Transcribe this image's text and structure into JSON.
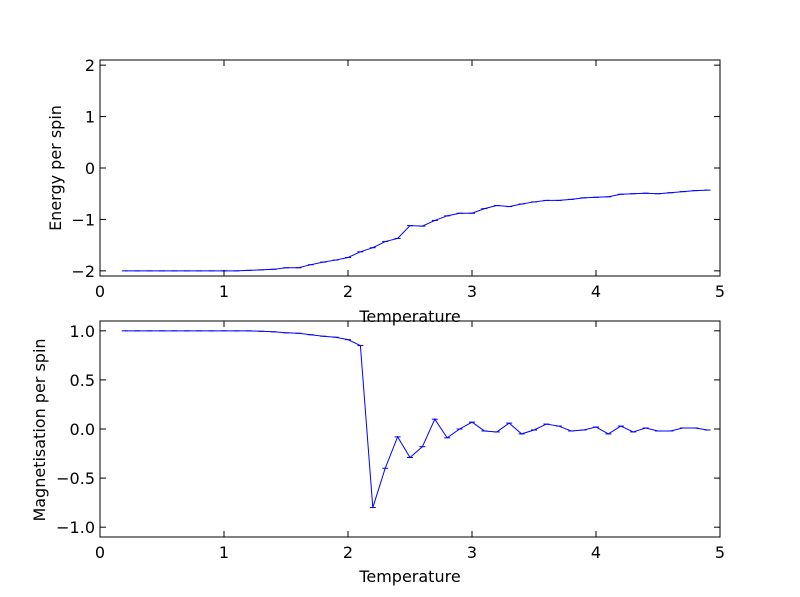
{
  "line_color": "#0000ff",
  "chart_data": [
    {
      "type": "line",
      "xlabel": "Temperature",
      "ylabel": "Energy per spin",
      "xlim": [
        0,
        5
      ],
      "ylim": [
        -2.1,
        2.1
      ],
      "xticks": [
        0,
        1,
        2,
        3,
        4,
        5
      ],
      "yticks": [
        -2,
        -1,
        0,
        1,
        2
      ],
      "xtick_labels": [
        "0",
        "1",
        "2",
        "3",
        "4",
        "5"
      ],
      "ytick_labels": [
        "−2",
        "−1",
        "0",
        "1",
        "2"
      ],
      "grid": false,
      "error_bars": true,
      "series": [
        {
          "x": [
            0.2,
            0.3,
            0.4,
            0.5,
            0.6,
            0.7,
            0.8,
            0.9,
            1.0,
            1.1,
            1.2,
            1.3,
            1.4,
            1.5,
            1.6,
            1.7,
            1.8,
            1.9,
            2.0,
            2.1,
            2.2,
            2.3,
            2.4,
            2.5,
            2.6,
            2.7,
            2.8,
            2.9,
            3.0,
            3.1,
            3.2,
            3.3,
            3.4,
            3.5,
            3.6,
            3.7,
            3.8,
            3.9,
            4.0,
            4.1,
            4.2,
            4.3,
            4.4,
            4.5,
            4.6,
            4.7,
            4.8,
            4.9
          ],
          "y": [
            -2.0,
            -2.0,
            -2.0,
            -2.0,
            -2.0,
            -2.0,
            -2.0,
            -2.0,
            -2.0,
            -2.0,
            -1.99,
            -1.98,
            -1.97,
            -1.94,
            -1.94,
            -1.88,
            -1.83,
            -1.79,
            -1.74,
            -1.63,
            -1.55,
            -1.43,
            -1.37,
            -1.12,
            -1.13,
            -1.02,
            -0.93,
            -0.88,
            -0.88,
            -0.79,
            -0.73,
            -0.75,
            -0.7,
            -0.66,
            -0.63,
            -0.63,
            -0.61,
            -0.58,
            -0.57,
            -0.56,
            -0.51,
            -0.5,
            -0.49,
            -0.5,
            -0.48,
            -0.46,
            -0.44,
            -0.43
          ]
        }
      ]
    },
    {
      "type": "line",
      "xlabel": "Temperature",
      "ylabel": "Magnetisation per spin",
      "xlim": [
        0,
        5
      ],
      "ylim": [
        -1.1,
        1.1
      ],
      "xticks": [
        0,
        1,
        2,
        3,
        4,
        5
      ],
      "yticks": [
        -1.0,
        -0.5,
        0.0,
        0.5,
        1.0
      ],
      "xtick_labels": [
        "0",
        "1",
        "2",
        "3",
        "4",
        "5"
      ],
      "ytick_labels": [
        "−1.0",
        "−0.5",
        "0.0",
        "0.5",
        "1.0"
      ],
      "grid": false,
      "error_bars": true,
      "series": [
        {
          "x": [
            0.2,
            0.3,
            0.4,
            0.5,
            0.6,
            0.7,
            0.8,
            0.9,
            1.0,
            1.1,
            1.2,
            1.3,
            1.4,
            1.5,
            1.6,
            1.7,
            1.8,
            1.9,
            2.0,
            2.1,
            2.2,
            2.3,
            2.4,
            2.5,
            2.6,
            2.7,
            2.8,
            2.9,
            3.0,
            3.1,
            3.2,
            3.3,
            3.4,
            3.5,
            3.6,
            3.7,
            3.8,
            3.9,
            4.0,
            4.1,
            4.2,
            4.3,
            4.4,
            4.5,
            4.6,
            4.7,
            4.8,
            4.9
          ],
          "y": [
            1.0,
            1.0,
            1.0,
            1.0,
            1.0,
            1.0,
            1.0,
            1.0,
            1.0,
            1.0,
            1.0,
            0.995,
            0.99,
            0.98,
            0.975,
            0.96,
            0.945,
            0.935,
            0.91,
            0.85,
            -0.8,
            -0.4,
            -0.08,
            -0.29,
            -0.18,
            0.1,
            -0.09,
            0.0,
            0.07,
            -0.02,
            -0.03,
            0.06,
            -0.05,
            -0.01,
            0.05,
            0.03,
            -0.02,
            -0.01,
            0.02,
            -0.05,
            0.03,
            -0.03,
            0.01,
            -0.02,
            -0.02,
            0.01,
            0.01,
            -0.01
          ]
        }
      ]
    }
  ]
}
